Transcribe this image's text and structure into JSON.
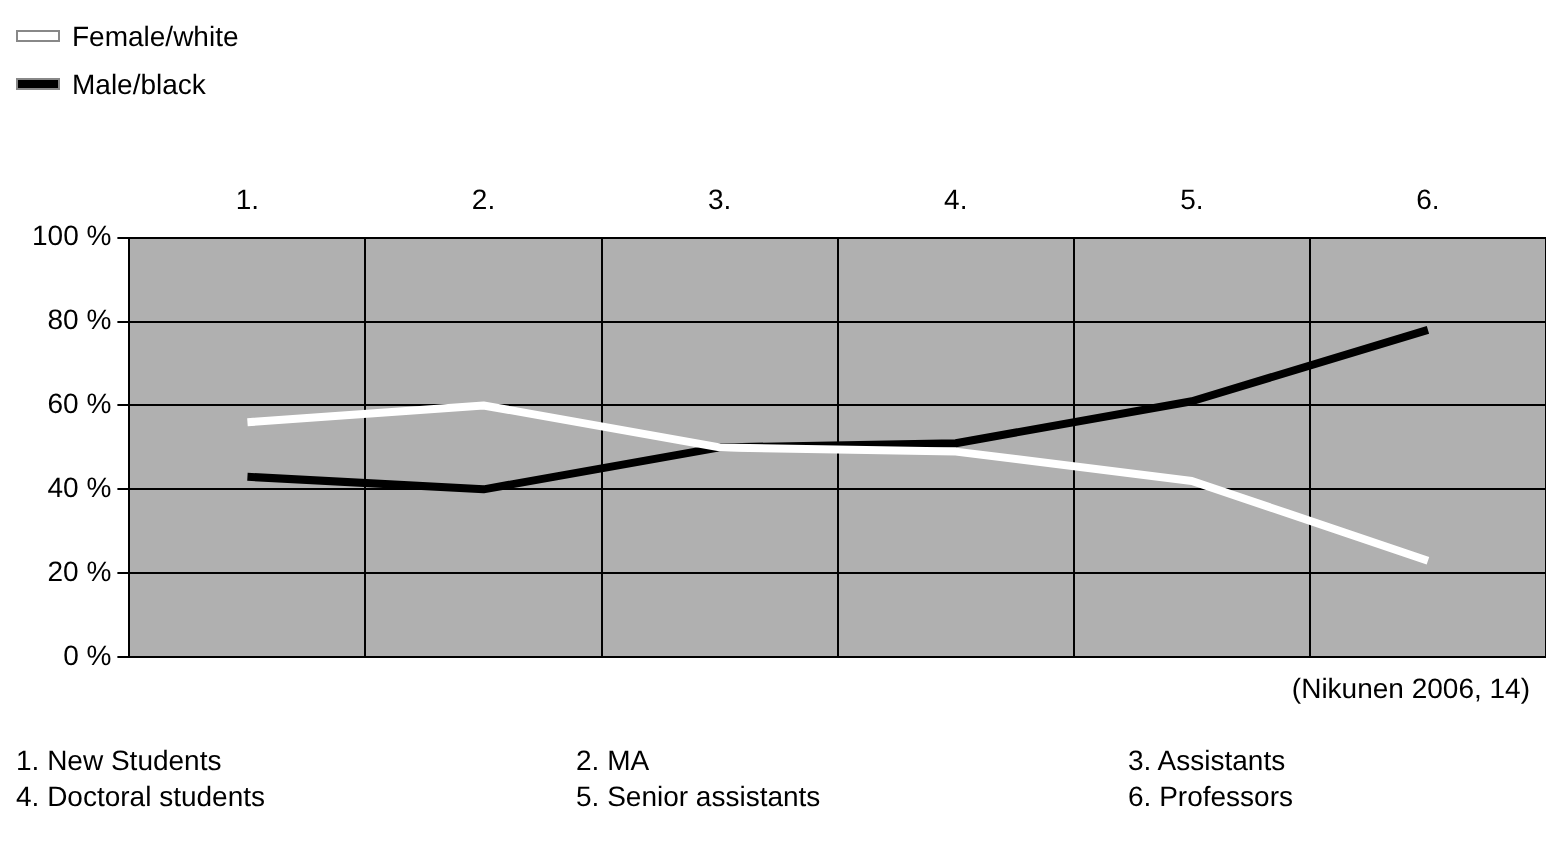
{
  "chart_data": {
    "type": "line",
    "categories": [
      "1.",
      "2.",
      "3.",
      "4.",
      "5.",
      "6."
    ],
    "series": [
      {
        "name": "Female/white",
        "color": "#ffffff",
        "values": [
          56,
          60,
          50,
          49,
          42,
          23
        ]
      },
      {
        "name": "Male/black",
        "color": "#000000",
        "values": [
          43,
          40,
          50,
          51,
          61,
          78
        ]
      }
    ],
    "ylim": [
      0,
      100
    ],
    "yticks": [
      {
        "value": 0,
        "label": "0 %"
      },
      {
        "value": 20,
        "label": "20 %"
      },
      {
        "value": 40,
        "label": "40 %"
      },
      {
        "value": 60,
        "label": "60 %"
      },
      {
        "value": 80,
        "label": "80 %"
      },
      {
        "value": 100,
        "label": "100 %"
      }
    ],
    "grid": true,
    "legend": "top left",
    "marker": "none",
    "line_style": "solid",
    "annotations": [
      "(Nikunen  2006, 14)",
      "1. New Students",
      "2. MA",
      "3. Assistants",
      "4. Doctoral students",
      "5. Senior assistants",
      "6. Professors"
    ]
  }
}
